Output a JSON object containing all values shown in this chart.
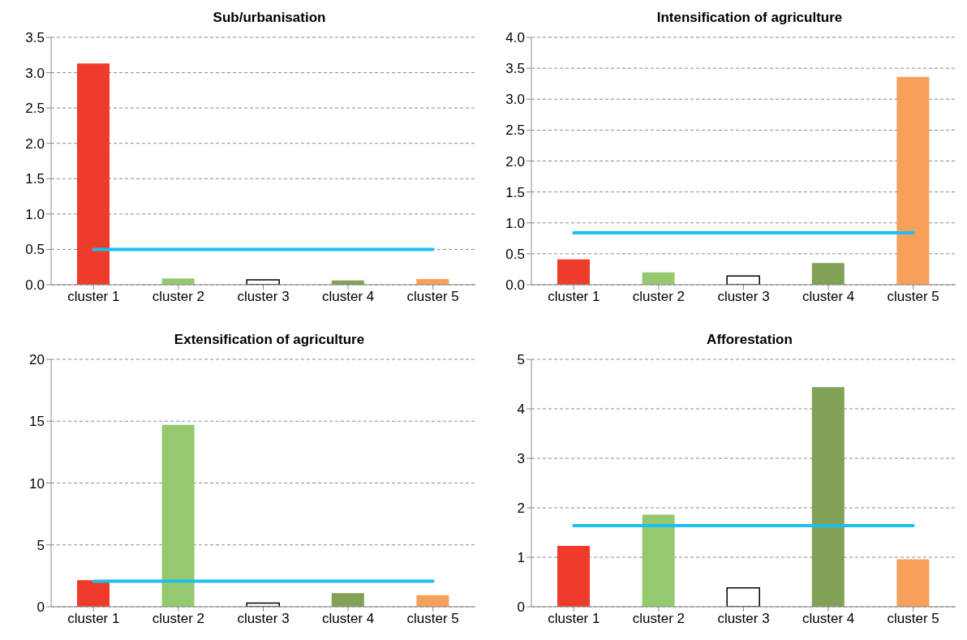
{
  "chart_data": [
    {
      "type": "bar",
      "title": "Sub/urbanisation",
      "categories": [
        "cluster 1",
        "cluster 2",
        "cluster 3",
        "cluster 4",
        "cluster 5"
      ],
      "series": [
        {
          "colors": [
            "#ee3b2b",
            "#95c96f",
            "#ffffff",
            "#82a056",
            "#f7a05c"
          ],
          "values": [
            3.13,
            0.09,
            0.07,
            0.06,
            0.08
          ]
        },
        {
          "type": "line",
          "color": "#1cbfee",
          "values": [
            0.5,
            0.5,
            0.5,
            0.5,
            0.5
          ]
        }
      ],
      "ylim": [
        0,
        3.5
      ],
      "yticks": [
        {
          "value": 0,
          "label": "0.0"
        },
        0.5,
        {
          "value": 1,
          "label": "1.0"
        },
        1.5,
        {
          "value": 2,
          "label": "2.0"
        },
        2.5,
        {
          "value": 3,
          "label": "3.0"
        },
        3.5
      ],
      "grid": "y",
      "marker": "none"
    },
    {
      "type": "bar",
      "title": "Intensification of agriculture",
      "categories": [
        "cluster 1",
        "cluster 2",
        "cluster 3",
        "cluster 4",
        "cluster 5"
      ],
      "series": [
        {
          "colors": [
            "#ee3b2b",
            "#95c96f",
            "#ffffff",
            "#82a056",
            "#f7a05c"
          ],
          "values": [
            0.41,
            0.2,
            0.14,
            0.35,
            3.36
          ]
        },
        {
          "type": "line",
          "color": "#1cbfee",
          "values": [
            0.84,
            0.84,
            0.84,
            0.84,
            0.84
          ]
        }
      ],
      "ylim": [
        0,
        4
      ],
      "yticks": [
        {
          "value": 0,
          "label": "0.0"
        },
        0.5,
        {
          "value": 1,
          "label": "1.0"
        },
        1.5,
        {
          "value": 2,
          "label": "2.0"
        },
        2.5,
        {
          "value": 3,
          "label": "3.0"
        },
        3.5,
        {
          "value": 4,
          "label": "4.0"
        }
      ],
      "grid": "y",
      "marker": "none"
    },
    {
      "type": "bar",
      "title": "Extensification of agriculture",
      "categories": [
        "cluster 1",
        "cluster 2",
        "cluster 3",
        "cluster 4",
        "cluster 5"
      ],
      "series": [
        {
          "colors": [
            "#ee3b2b",
            "#95c96f",
            "#ffffff",
            "#82a056",
            "#f7a05c"
          ],
          "values": [
            2.15,
            14.7,
            0.3,
            1.1,
            0.93
          ]
        },
        {
          "type": "line",
          "color": "#1cbfee",
          "values": [
            2.07,
            2.07,
            2.07,
            2.07,
            2.07
          ]
        }
      ],
      "ylim": [
        0,
        20
      ],
      "yticks": [
        0,
        5,
        10,
        15,
        20
      ],
      "grid": "y",
      "marker": "none"
    },
    {
      "type": "bar",
      "title": "Afforestation",
      "categories": [
        "cluster 1",
        "cluster 2",
        "cluster 3",
        "cluster 4",
        "cluster 5"
      ],
      "series": [
        {
          "colors": [
            "#ee3b2b",
            "#95c96f",
            "#ffffff",
            "#82a056",
            "#f7a05c"
          ],
          "values": [
            1.23,
            1.86,
            0.38,
            4.44,
            0.96
          ]
        },
        {
          "type": "line",
          "color": "#1cbfee",
          "values": [
            1.64,
            1.64,
            1.64,
            1.64,
            1.64
          ]
        }
      ],
      "ylim": [
        0,
        5
      ],
      "yticks": [
        0,
        1,
        2,
        3,
        4,
        5
      ],
      "grid": "y",
      "marker": "none"
    }
  ]
}
